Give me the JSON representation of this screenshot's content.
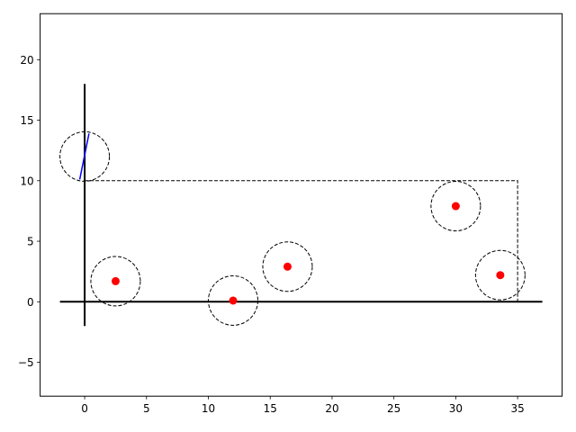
{
  "chart_data": {
    "type": "scatter",
    "title": "",
    "xlabel": "",
    "ylabel": "",
    "xlim": [
      -3.6,
      38.6
    ],
    "ylim": [
      -7.8,
      23.8
    ],
    "x_ticks": [
      0,
      5,
      10,
      15,
      20,
      25,
      30,
      35
    ],
    "y_ticks": [
      -5,
      0,
      5,
      10,
      15,
      20
    ],
    "x_tick_labels": [
      "0",
      "5",
      "10",
      "15",
      "20",
      "25",
      "30",
      "35"
    ],
    "y_tick_labels": [
      "−5",
      "0",
      "5",
      "10",
      "15",
      "20"
    ],
    "grid": false,
    "legend": "none",
    "points": [
      {
        "x": 2.5,
        "y": 1.7
      },
      {
        "x": 12.0,
        "y": 0.1
      },
      {
        "x": 16.4,
        "y": 2.9
      },
      {
        "x": 30.0,
        "y": 7.9
      },
      {
        "x": 33.6,
        "y": 2.2
      }
    ],
    "point_color": "#ff0000",
    "circles": [
      {
        "cx": 2.5,
        "cy": 1.7,
        "r": 2.0
      },
      {
        "cx": 12.0,
        "cy": 0.1,
        "r": 2.0
      },
      {
        "cx": 16.4,
        "cy": 2.9,
        "r": 2.0
      },
      {
        "cx": 30.0,
        "cy": 7.9,
        "r": 2.0
      },
      {
        "cx": 33.6,
        "cy": 2.2,
        "r": 2.0
      },
      {
        "cx": 0.0,
        "cy": 12.0,
        "r": 2.0
      }
    ],
    "circle_color": "#000000",
    "reference_axes": {
      "horizontal": {
        "x0": -2,
        "x1": 37,
        "y": 0
      },
      "vertical": {
        "x": 0,
        "y0": -2,
        "y1": 18
      }
    },
    "rectangle": {
      "x0": 0,
      "y0": 0,
      "x1": 35,
      "y1": 10
    },
    "segment": {
      "x0": -0.4,
      "y0": 10.1,
      "x1": 0.35,
      "y1": 13.9,
      "color": "#0000ff"
    }
  }
}
